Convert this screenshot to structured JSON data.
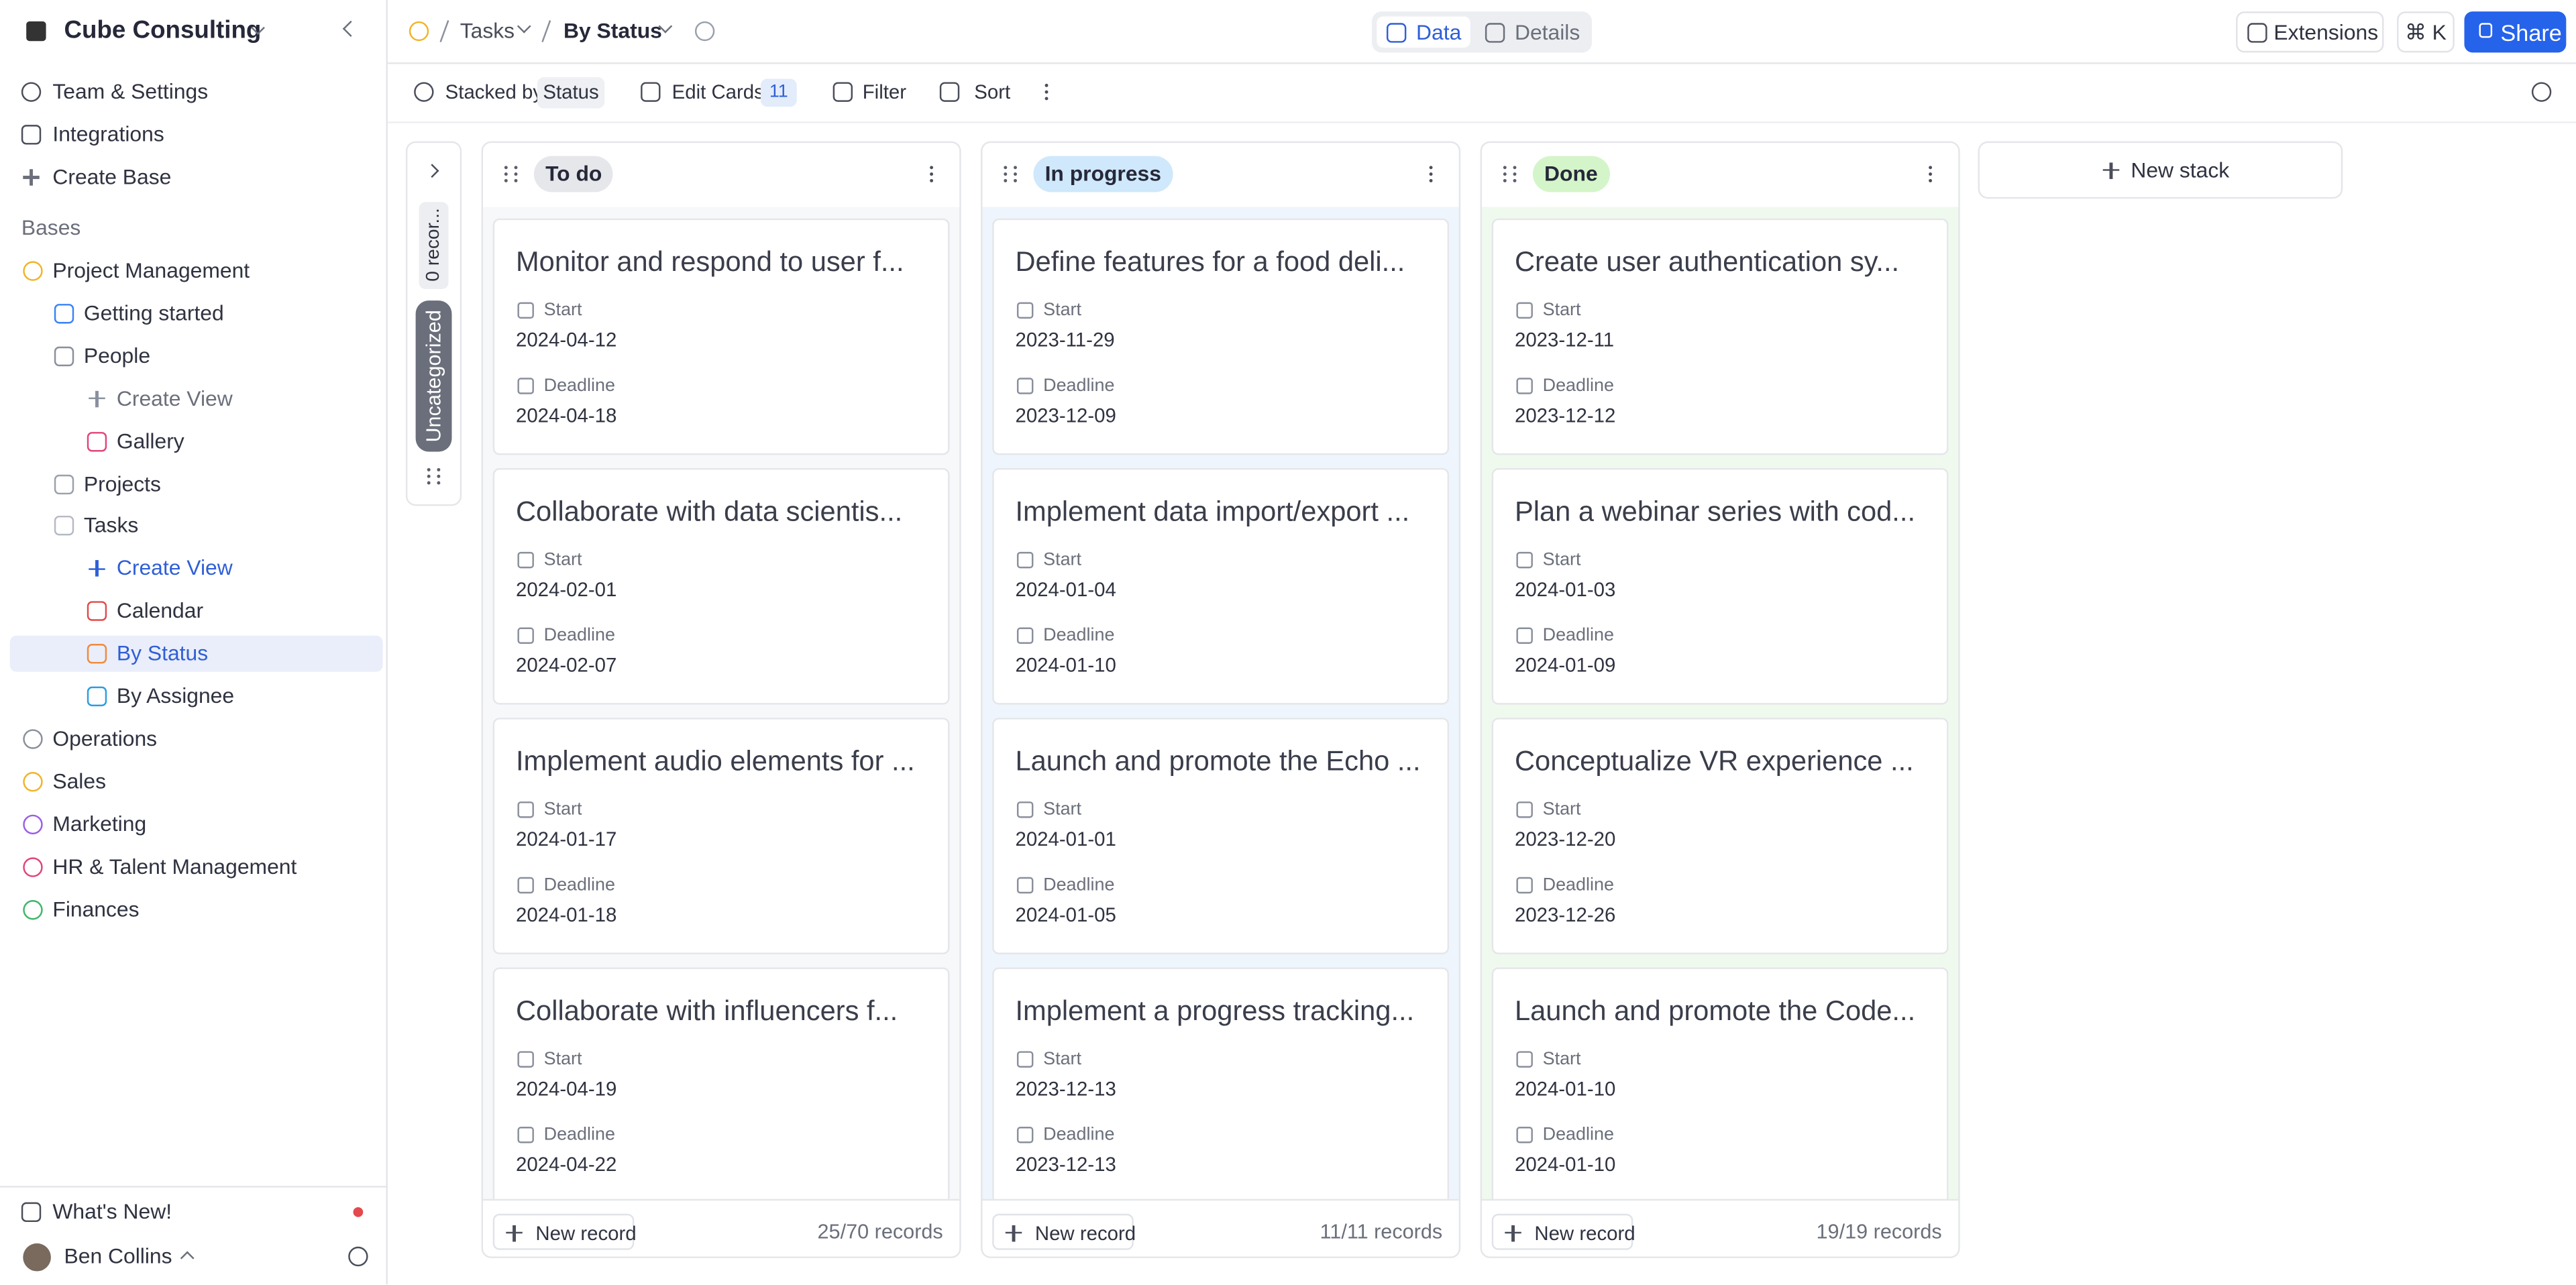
{
  "sidebar": {
    "workspace": "Cube Consulting",
    "menu": [
      "Team & Settings",
      "Integrations",
      "Create Base"
    ],
    "bases_heading": "Bases",
    "tree": [
      {
        "label": "Project Management",
        "level": 0,
        "color": "#f0b429"
      },
      {
        "label": "Getting started",
        "level": 1,
        "color": "#3b82f6"
      },
      {
        "label": "People",
        "level": 1,
        "color": "#8a8f9c"
      },
      {
        "label": "Create View",
        "level": 2,
        "style": "create"
      },
      {
        "label": "Gallery",
        "level": 2,
        "color": "#e0457b"
      },
      {
        "label": "Projects",
        "level": 1,
        "color": "#9aa0ab"
      },
      {
        "label": "Tasks",
        "level": 1,
        "color": "#b5bac3"
      },
      {
        "label": "Create View",
        "level": 2,
        "style": "create-active"
      },
      {
        "label": "Calendar",
        "level": 2,
        "color": "#e04b4b"
      },
      {
        "label": "By Status",
        "level": 2,
        "color": "#f08a3c",
        "style": "selected"
      },
      {
        "label": "By Assignee",
        "level": 2,
        "color": "#2c9de0"
      },
      {
        "label": "Operations",
        "level": 0,
        "color": "#8a8f9c"
      },
      {
        "label": "Sales",
        "level": 0,
        "color": "#f0b429"
      },
      {
        "label": "Marketing",
        "level": 0,
        "color": "#9b5de5"
      },
      {
        "label": "HR & Talent Management",
        "level": 0,
        "color": "#e0457b"
      },
      {
        "label": "Finances",
        "level": 0,
        "color": "#3fb66b"
      }
    ],
    "whats_new": "What's New!",
    "user": "Ben Collins"
  },
  "topbar": {
    "breadcrumb": [
      "Tasks",
      "By Status"
    ],
    "tabs": [
      "Data",
      "Details"
    ],
    "extensions": "Extensions",
    "shortcut": "⌘ K",
    "share": "Share"
  },
  "toolbar": {
    "stacked_by": "Stacked by",
    "stack_field": "Status",
    "edit_cards": "Edit Cards",
    "card_field_count": 11,
    "filter": "Filter",
    "sort": "Sort"
  },
  "board": {
    "uncategorized": {
      "name": "Uncategorized",
      "count": "0 recor..."
    },
    "field_labels": [
      "Start",
      "Deadline"
    ],
    "new_record": "New record",
    "new_stack": "New stack",
    "stacks": [
      {
        "name": "To do",
        "pill": "#e6e7ea",
        "bg": "#f7f8fa",
        "records": "25/70 records",
        "cards": [
          {
            "title": "Monitor and respond to user f...",
            "start": "2024-04-12",
            "deadline": "2024-04-18"
          },
          {
            "title": "Collaborate with data scientis...",
            "start": "2024-02-01",
            "deadline": "2024-02-07"
          },
          {
            "title": "Implement audio elements for ...",
            "start": "2024-01-17",
            "deadline": "2024-01-18"
          },
          {
            "title": "Collaborate with influencers f...",
            "start": "2024-04-19",
            "deadline": "2024-04-22"
          }
        ]
      },
      {
        "name": "In progress",
        "pill": "#cfe8fb",
        "bg": "#eef5fc",
        "records": "11/11 records",
        "cards": [
          {
            "title": "Define features for a food deli...",
            "start": "2023-11-29",
            "deadline": "2023-12-09"
          },
          {
            "title": "Implement data import/export ...",
            "start": "2024-01-04",
            "deadline": "2024-01-10"
          },
          {
            "title": "Launch and promote the Echo ...",
            "start": "2024-01-01",
            "deadline": "2024-01-05"
          },
          {
            "title": "Implement a progress tracking...",
            "start": "2023-12-13",
            "deadline": "2023-12-13"
          }
        ]
      },
      {
        "name": "Done",
        "pill": "#d4f5c9",
        "bg": "#f0f9ed",
        "records": "19/19 records",
        "cards": [
          {
            "title": "Create user authentication sy...",
            "start": "2023-12-11",
            "deadline": "2023-12-12"
          },
          {
            "title": "Plan a webinar series with cod...",
            "start": "2024-01-03",
            "deadline": "2024-01-09"
          },
          {
            "title": "Conceptualize VR experience ...",
            "start": "2023-12-20",
            "deadline": "2023-12-26"
          },
          {
            "title": "Launch and promote the Code...",
            "start": "2024-01-10",
            "deadline": "2024-01-10"
          }
        ]
      }
    ]
  }
}
